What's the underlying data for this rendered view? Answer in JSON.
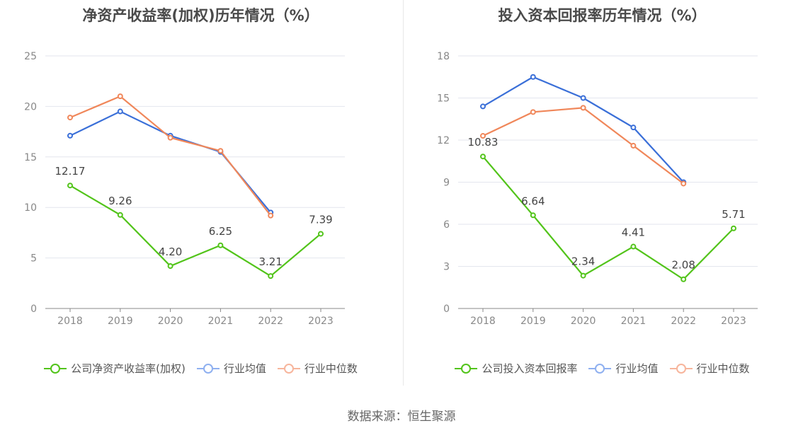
{
  "source_text": "数据来源：恒生聚源",
  "chart_data": [
    {
      "type": "line",
      "title": "净资产收益率(加权)历年情况（%）",
      "categories": [
        "2018",
        "2019",
        "2020",
        "2021",
        "2022",
        "2023"
      ],
      "ylim": [
        0,
        25
      ],
      "yticks": [
        0,
        5,
        10,
        15,
        20,
        25
      ],
      "grid": true,
      "legend_position": "bottom",
      "series": [
        {
          "name": "公司净资产收益率(加权)",
          "color": "#52c41a",
          "values": [
            12.17,
            9.26,
            4.2,
            6.25,
            3.21,
            7.39
          ],
          "labels": [
            "12.17",
            "9.26",
            "4.20",
            "6.25",
            "3.21",
            "7.39"
          ]
        },
        {
          "name": "行业均值",
          "color": "#3a6fd8",
          "values": [
            17.1,
            19.5,
            17.1,
            15.5,
            9.5,
            null
          ]
        },
        {
          "name": "行业中位数",
          "color": "#f0875a",
          "values": [
            18.9,
            21.0,
            16.9,
            15.6,
            9.2,
            null
          ]
        }
      ]
    },
    {
      "type": "line",
      "title": "投入资本回报率历年情况（%）",
      "categories": [
        "2018",
        "2019",
        "2020",
        "2021",
        "2022",
        "2023"
      ],
      "ylim": [
        0,
        18
      ],
      "yticks": [
        0,
        3,
        6,
        9,
        12,
        15,
        18
      ],
      "grid": true,
      "legend_position": "bottom",
      "series": [
        {
          "name": "公司投入资本回报率",
          "color": "#52c41a",
          "values": [
            10.83,
            6.64,
            2.34,
            4.41,
            2.08,
            5.71
          ],
          "labels": [
            "10.83",
            "6.64",
            "2.34",
            "4.41",
            "2.08",
            "5.71"
          ]
        },
        {
          "name": "行业均值",
          "color": "#3a6fd8",
          "values": [
            14.4,
            16.5,
            15.0,
            12.9,
            9.0,
            null
          ]
        },
        {
          "name": "行业中位数",
          "color": "#f0875a",
          "values": [
            12.3,
            14.0,
            14.3,
            11.6,
            8.9,
            null
          ]
        }
      ]
    }
  ]
}
